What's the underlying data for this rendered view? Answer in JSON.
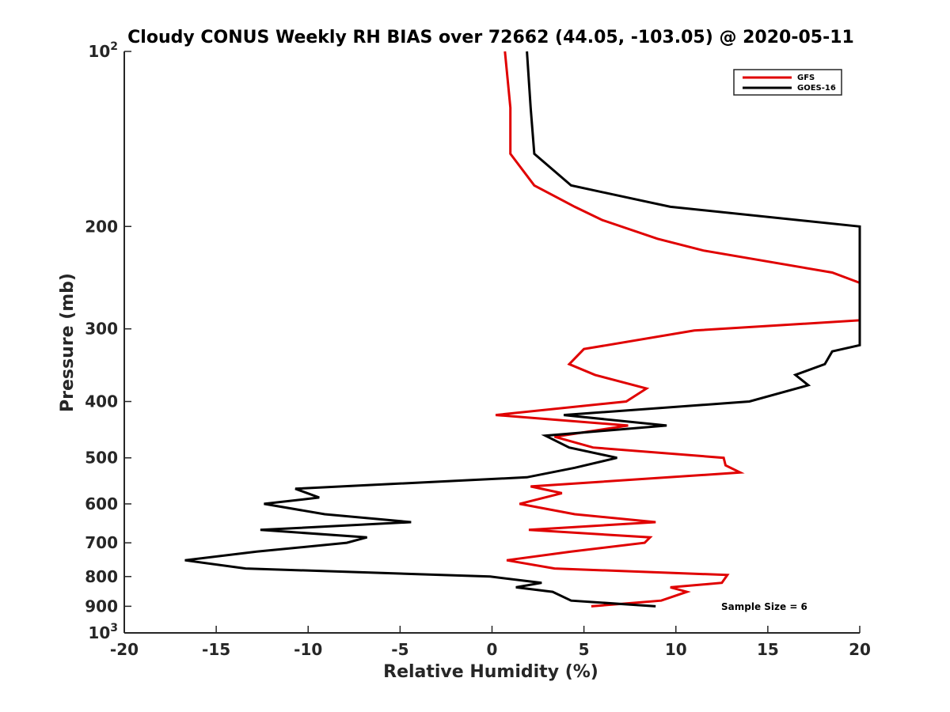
{
  "chart_data": {
    "type": "line",
    "title": "Cloudy CONUS Weekly RH BIAS over 72662 (44.05, -103.05) @ 2020-05-11",
    "xlabel": "Relative Humidity (%)",
    "ylabel": "Pressure (mb)",
    "xlim": [
      -20,
      20
    ],
    "ylim": [
      100,
      1000
    ],
    "y_scale": "log",
    "y_reversed": true,
    "grid": false,
    "legend_position": "top-right",
    "x_ticks": [
      "-20",
      "-15",
      "-10",
      "-5",
      "0",
      "5",
      "10",
      "15",
      "20"
    ],
    "y_ticks": [
      {
        "value": 100,
        "label": "10",
        "sup": "2"
      },
      {
        "value": 200,
        "label": "200",
        "sup": ""
      },
      {
        "value": 300,
        "label": "300",
        "sup": ""
      },
      {
        "value": 400,
        "label": "400",
        "sup": ""
      },
      {
        "value": 500,
        "label": "500",
        "sup": ""
      },
      {
        "value": 600,
        "label": "600",
        "sup": ""
      },
      {
        "value": 700,
        "label": "700",
        "sup": ""
      },
      {
        "value": 800,
        "label": "800",
        "sup": ""
      },
      {
        "value": 900,
        "label": "900",
        "sup": ""
      },
      {
        "value": 1000,
        "label": "10",
        "sup": "3"
      }
    ],
    "series": [
      {
        "name": "GFS",
        "color": "#e00000",
        "points": [
          [
            0.7,
            100
          ],
          [
            1.0,
            125
          ],
          [
            1.0,
            150
          ],
          [
            2.3,
            170
          ],
          [
            4.5,
            185
          ],
          [
            6.0,
            195
          ],
          [
            9.0,
            210
          ],
          [
            11.5,
            220
          ],
          [
            18.5,
            240
          ],
          [
            20,
            250
          ],
          [
            20,
            290
          ],
          [
            11.0,
            302
          ],
          [
            5.0,
            325
          ],
          [
            4.2,
            345
          ],
          [
            5.6,
            360
          ],
          [
            8.4,
            380
          ],
          [
            7.3,
            400
          ],
          [
            0.2,
            422
          ],
          [
            7.4,
            440
          ],
          [
            3.4,
            460
          ],
          [
            5.5,
            480
          ],
          [
            12.6,
            500
          ],
          [
            12.7,
            515
          ],
          [
            13.5,
            530
          ],
          [
            2.1,
            560
          ],
          [
            3.8,
            575
          ],
          [
            1.5,
            600
          ],
          [
            4.5,
            625
          ],
          [
            8.9,
            645
          ],
          [
            2.0,
            665
          ],
          [
            8.6,
            685
          ],
          [
            8.3,
            700
          ],
          [
            4.3,
            725
          ],
          [
            0.8,
            750
          ],
          [
            3.4,
            775
          ],
          [
            12.8,
            795
          ],
          [
            12.5,
            820
          ],
          [
            9.7,
            835
          ],
          [
            10.6,
            850
          ],
          [
            9.2,
            880
          ],
          [
            5.4,
            900
          ]
        ]
      },
      {
        "name": "GOES-16",
        "color": "#000000",
        "points": [
          [
            1.9,
            100
          ],
          [
            2.1,
            125
          ],
          [
            2.3,
            150
          ],
          [
            4.3,
            170
          ],
          [
            9.7,
            185
          ],
          [
            20,
            200
          ],
          [
            20,
            320
          ],
          [
            18.5,
            328
          ],
          [
            18.1,
            345
          ],
          [
            16.5,
            360
          ],
          [
            17.2,
            375
          ],
          [
            14.0,
            400
          ],
          [
            3.9,
            422
          ],
          [
            9.5,
            440
          ],
          [
            2.9,
            458
          ],
          [
            4.2,
            480
          ],
          [
            6.8,
            500
          ],
          [
            4.5,
            520
          ],
          [
            1.9,
            540
          ],
          [
            -10.7,
            565
          ],
          [
            -9.4,
            585
          ],
          [
            -12.4,
            600
          ],
          [
            -9.1,
            625
          ],
          [
            -4.4,
            645
          ],
          [
            -12.6,
            665
          ],
          [
            -6.8,
            685
          ],
          [
            -7.9,
            700
          ],
          [
            -12.8,
            725
          ],
          [
            -16.7,
            750
          ],
          [
            -13.4,
            775
          ],
          [
            -0.1,
            800
          ],
          [
            2.7,
            820
          ],
          [
            1.3,
            835
          ],
          [
            3.3,
            850
          ],
          [
            4.3,
            880
          ],
          [
            8.9,
            900
          ]
        ]
      }
    ],
    "annotations": [
      {
        "text": "Sample Size = 6",
        "x": 12.5,
        "y": 900
      }
    ]
  }
}
